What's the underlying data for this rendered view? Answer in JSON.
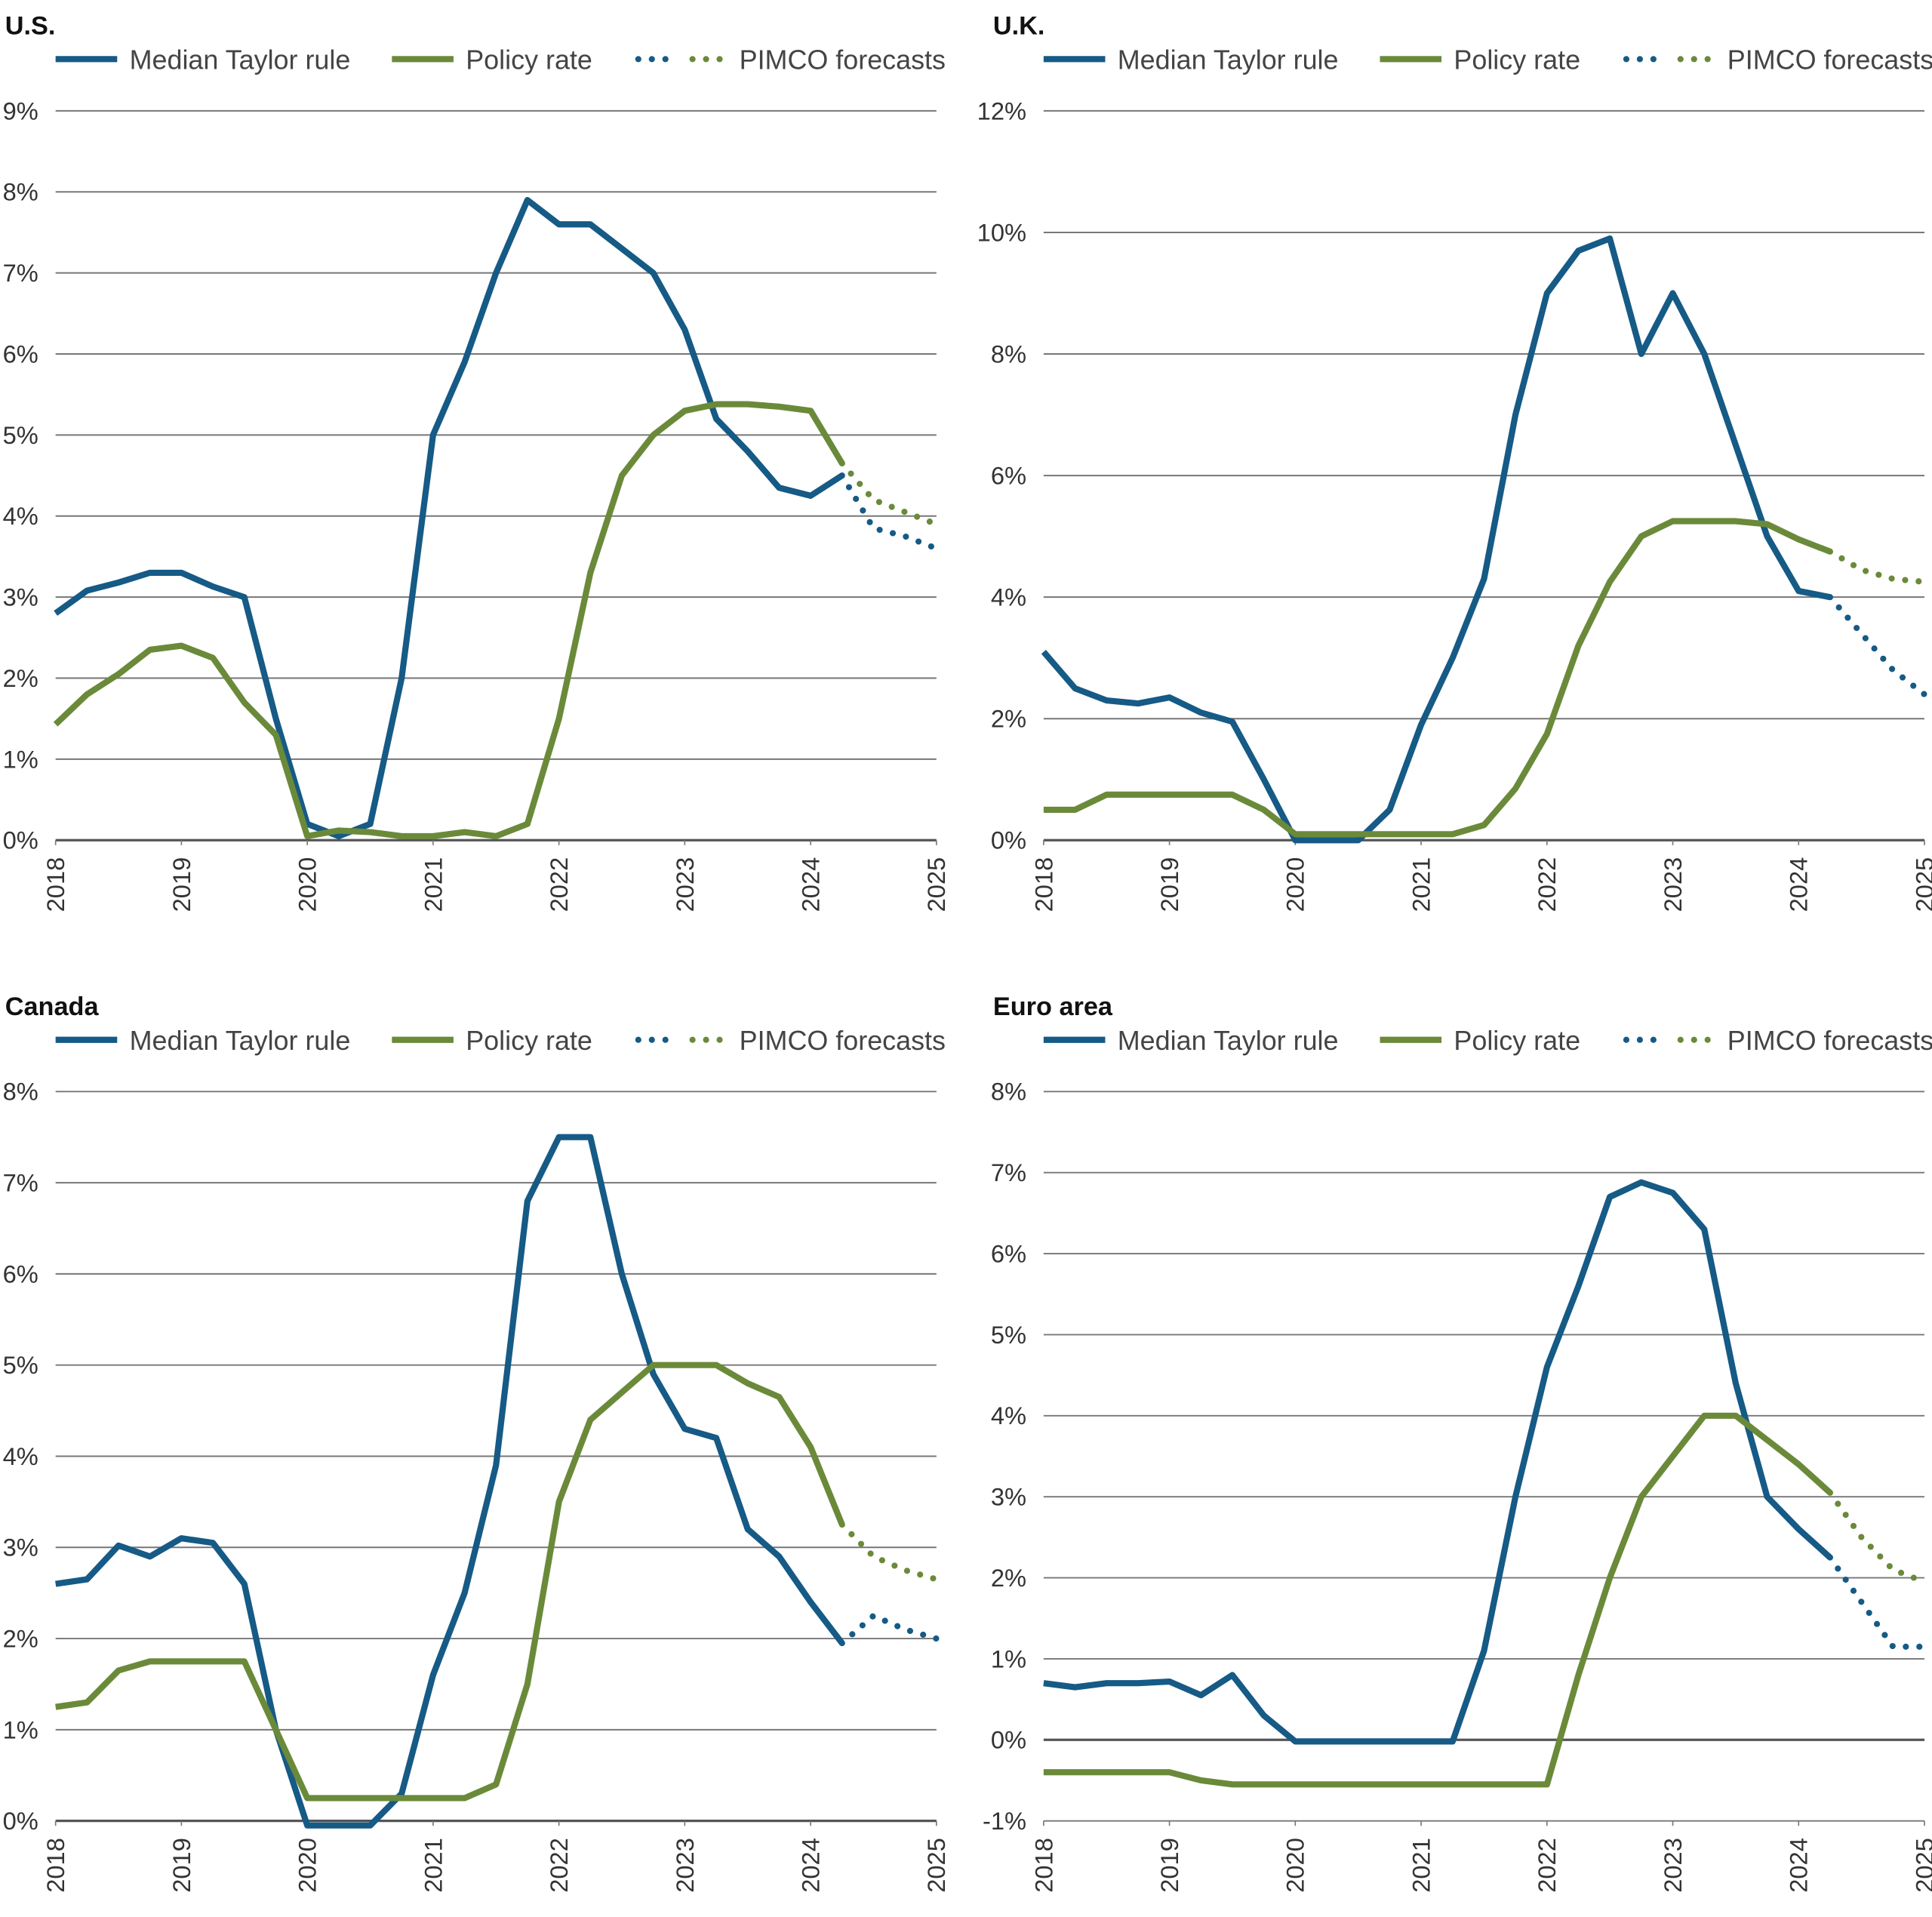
{
  "chart_data": [
    {
      "type": "line",
      "title": "U.S.",
      "x": [
        2018,
        2018.25,
        2018.5,
        2018.75,
        2019,
        2019.25,
        2019.5,
        2019.75,
        2020,
        2020.25,
        2020.5,
        2020.75,
        2021,
        2021.25,
        2021.5,
        2021.75,
        2022,
        2022.25,
        2022.5,
        2022.75,
        2023,
        2023.25,
        2023.5,
        2023.75,
        2024,
        2024.25,
        2024.5,
        2024.75,
        2025
      ],
      "xlim": [
        2018,
        2025
      ],
      "xticks": [
        2018,
        2019,
        2020,
        2021,
        2022,
        2023,
        2024,
        2025
      ],
      "ylim": [
        0,
        9
      ],
      "yticks": [
        {
          "value": 0,
          "label": "0%"
        },
        {
          "value": 1,
          "label": "1%"
        },
        {
          "value": 2,
          "label": "2%"
        },
        {
          "value": 3,
          "label": "3%"
        },
        {
          "value": 4,
          "label": "4%"
        },
        {
          "value": 5,
          "label": "5%"
        },
        {
          "value": 6,
          "label": "6%"
        },
        {
          "value": 7,
          "label": "7%"
        },
        {
          "value": 8,
          "label": "8%"
        },
        {
          "value": 9,
          "label": "9%"
        }
      ],
      "grid": true,
      "series": [
        {
          "name": "Median Taylor rule",
          "color": "#165a86",
          "values": [
            2.8,
            3.08,
            3.18,
            3.3,
            3.3,
            3.13,
            3.0,
            1.5,
            0.2,
            0.05,
            0.2,
            2.0,
            5.0,
            5.9,
            7.0,
            7.9,
            7.6,
            7.6,
            7.3,
            7.0,
            6.3,
            5.2,
            4.8,
            4.35,
            4.25,
            4.5,
            null,
            null,
            null
          ]
        },
        {
          "name": "Policy rate",
          "color": "#6a8a3a",
          "values": [
            1.43,
            1.8,
            2.05,
            2.35,
            2.4,
            2.25,
            1.7,
            1.3,
            0.05,
            0.12,
            0.1,
            0.05,
            0.05,
            0.1,
            0.05,
            0.2,
            1.5,
            3.3,
            4.5,
            5.0,
            5.3,
            5.38,
            5.38,
            5.35,
            5.3,
            4.65,
            null,
            null,
            null
          ]
        }
      ],
      "forecast": {
        "name": "PIMCO forecasts",
        "series": [
          {
            "color": "#165a86",
            "values": [
              null,
              null,
              null,
              null,
              null,
              null,
              null,
              null,
              null,
              null,
              null,
              null,
              null,
              null,
              null,
              null,
              null,
              null,
              null,
              null,
              null,
              null,
              null,
              null,
              null,
              4.5,
              3.85,
              3.75,
              3.6
            ]
          },
          {
            "color": "#6a8a3a",
            "values": [
              null,
              null,
              null,
              null,
              null,
              null,
              null,
              null,
              null,
              null,
              null,
              null,
              null,
              null,
              null,
              null,
              null,
              null,
              null,
              null,
              null,
              null,
              null,
              null,
              null,
              4.65,
              4.2,
              4.05,
              3.9
            ]
          }
        ]
      }
    },
    {
      "type": "line",
      "title": "U.K.",
      "x": [
        2018,
        2018.25,
        2018.5,
        2018.75,
        2019,
        2019.25,
        2019.5,
        2019.75,
        2020,
        2020.25,
        2020.5,
        2020.75,
        2021,
        2021.25,
        2021.5,
        2021.75,
        2022,
        2022.25,
        2022.5,
        2022.75,
        2023,
        2023.25,
        2023.5,
        2023.75,
        2024,
        2024.25,
        2024.5,
        2024.75,
        2025
      ],
      "xlim": [
        2018,
        2025
      ],
      "xticks": [
        2018,
        2019,
        2020,
        2021,
        2022,
        2023,
        2024,
        2025
      ],
      "ylim": [
        0,
        12
      ],
      "yticks": [
        {
          "value": 0,
          "label": "0%"
        },
        {
          "value": 2,
          "label": "2%"
        },
        {
          "value": 4,
          "label": "4%"
        },
        {
          "value": 6,
          "label": "6%"
        },
        {
          "value": 8,
          "label": "8%"
        },
        {
          "value": 10,
          "label": "10%"
        },
        {
          "value": 12,
          "label": "12%"
        }
      ],
      "grid": true,
      "series": [
        {
          "name": "Median Taylor rule",
          "color": "#165a86",
          "values": [
            3.1,
            2.5,
            2.3,
            2.25,
            2.35,
            2.1,
            1.95,
            1.0,
            0,
            0,
            0,
            0.5,
            1.9,
            3.0,
            4.3,
            7.0,
            9.0,
            9.7,
            9.9,
            8.0,
            9.0,
            8.0,
            6.5,
            5.0,
            4.1,
            4.0,
            null,
            null,
            null
          ]
        },
        {
          "name": "Policy rate",
          "color": "#6a8a3a",
          "values": [
            0.5,
            0.5,
            0.75,
            0.75,
            0.75,
            0.75,
            0.75,
            0.5,
            0.1,
            0.1,
            0.1,
            0.1,
            0.1,
            0.1,
            0.25,
            0.85,
            1.75,
            3.2,
            4.25,
            5.0,
            5.25,
            5.25,
            5.25,
            5.2,
            4.95,
            4.75,
            null,
            null,
            null
          ]
        }
      ],
      "forecast": {
        "name": "PIMCO forecasts",
        "series": [
          {
            "color": "#165a86",
            "values": [
              null,
              null,
              null,
              null,
              null,
              null,
              null,
              null,
              null,
              null,
              null,
              null,
              null,
              null,
              null,
              null,
              null,
              null,
              null,
              null,
              null,
              null,
              null,
              null,
              null,
              4.0,
              3.4,
              2.8,
              2.4
            ]
          },
          {
            "color": "#6a8a3a",
            "values": [
              null,
              null,
              null,
              null,
              null,
              null,
              null,
              null,
              null,
              null,
              null,
              null,
              null,
              null,
              null,
              null,
              null,
              null,
              null,
              null,
              null,
              null,
              null,
              null,
              null,
              4.75,
              4.45,
              4.3,
              4.25
            ]
          }
        ]
      }
    },
    {
      "type": "line",
      "title": "Canada",
      "x": [
        2018,
        2018.25,
        2018.5,
        2018.75,
        2019,
        2019.25,
        2019.5,
        2019.75,
        2020,
        2020.25,
        2020.5,
        2020.75,
        2021,
        2021.25,
        2021.5,
        2021.75,
        2022,
        2022.25,
        2022.5,
        2022.75,
        2023,
        2023.25,
        2023.5,
        2023.75,
        2024,
        2024.25,
        2024.5,
        2024.75,
        2025
      ],
      "xlim": [
        2018,
        2025
      ],
      "xticks": [
        2018,
        2019,
        2020,
        2021,
        2022,
        2023,
        2024,
        2025
      ],
      "ylim": [
        0,
        8
      ],
      "yticks": [
        {
          "value": 0,
          "label": "0%"
        },
        {
          "value": 1,
          "label": "1%"
        },
        {
          "value": 2,
          "label": "2%"
        },
        {
          "value": 3,
          "label": "3%"
        },
        {
          "value": 4,
          "label": "4%"
        },
        {
          "value": 5,
          "label": "5%"
        },
        {
          "value": 6,
          "label": "6%"
        },
        {
          "value": 7,
          "label": "7%"
        },
        {
          "value": 8,
          "label": "8%"
        }
      ],
      "grid": true,
      "series": [
        {
          "name": "Median Taylor rule",
          "color": "#165a86",
          "values": [
            2.6,
            2.65,
            3.02,
            2.9,
            3.1,
            3.05,
            2.6,
            1.0,
            -0.05,
            -0.05,
            -0.05,
            0.3,
            1.6,
            2.5,
            3.9,
            6.8,
            7.5,
            7.5,
            6.0,
            4.9,
            4.3,
            4.2,
            3.2,
            2.9,
            2.4,
            1.95,
            null,
            null,
            null
          ]
        },
        {
          "name": "Policy rate",
          "color": "#6a8a3a",
          "values": [
            1.25,
            1.3,
            1.65,
            1.75,
            1.75,
            1.75,
            1.75,
            1.0,
            0.25,
            0.25,
            0.25,
            0.25,
            0.25,
            0.25,
            0.4,
            1.5,
            3.5,
            4.4,
            4.7,
            5.0,
            5.0,
            5.0,
            4.8,
            4.65,
            4.1,
            3.25,
            null,
            null,
            null
          ]
        }
      ],
      "forecast": {
        "name": "PIMCO forecasts",
        "series": [
          {
            "color": "#165a86",
            "values": [
              null,
              null,
              null,
              null,
              null,
              null,
              null,
              null,
              null,
              null,
              null,
              null,
              null,
              null,
              null,
              null,
              null,
              null,
              null,
              null,
              null,
              null,
              null,
              null,
              null,
              1.95,
              2.25,
              2.1,
              2.0
            ]
          },
          {
            "color": "#6a8a3a",
            "values": [
              null,
              null,
              null,
              null,
              null,
              null,
              null,
              null,
              null,
              null,
              null,
              null,
              null,
              null,
              null,
              null,
              null,
              null,
              null,
              null,
              null,
              null,
              null,
              null,
              null,
              3.25,
              2.9,
              2.75,
              2.65
            ]
          }
        ]
      }
    },
    {
      "type": "line",
      "title": "Euro area",
      "x": [
        2018,
        2018.25,
        2018.5,
        2018.75,
        2019,
        2019.25,
        2019.5,
        2019.75,
        2020,
        2020.25,
        2020.5,
        2020.75,
        2021,
        2021.25,
        2021.5,
        2021.75,
        2022,
        2022.25,
        2022.5,
        2022.75,
        2023,
        2023.25,
        2023.5,
        2023.75,
        2024,
        2024.25,
        2024.5,
        2024.75,
        2025
      ],
      "xlim": [
        2018,
        2025
      ],
      "xticks": [
        2018,
        2019,
        2020,
        2021,
        2022,
        2023,
        2024,
        2025
      ],
      "ylim": [
        -1,
        8
      ],
      "yticks": [
        {
          "value": -1,
          "label": "-1%"
        },
        {
          "value": 0,
          "label": "0%"
        },
        {
          "value": 1,
          "label": "1%"
        },
        {
          "value": 2,
          "label": "2%"
        },
        {
          "value": 3,
          "label": "3%"
        },
        {
          "value": 4,
          "label": "4%"
        },
        {
          "value": 5,
          "label": "5%"
        },
        {
          "value": 6,
          "label": "6%"
        },
        {
          "value": 7,
          "label": "7%"
        },
        {
          "value": 8,
          "label": "8%"
        }
      ],
      "grid": true,
      "series": [
        {
          "name": "Median Taylor rule",
          "color": "#165a86",
          "values": [
            0.7,
            0.65,
            0.7,
            0.7,
            0.72,
            0.55,
            0.8,
            0.3,
            -0.02,
            -0.02,
            -0.02,
            -0.02,
            -0.02,
            -0.02,
            1.1,
            3.0,
            4.6,
            5.6,
            6.7,
            6.88,
            6.75,
            6.3,
            4.4,
            3.0,
            2.6,
            2.25,
            null,
            null,
            null
          ]
        },
        {
          "name": "Policy rate",
          "color": "#6a8a3a",
          "values": [
            -0.4,
            -0.4,
            -0.4,
            -0.4,
            -0.4,
            -0.5,
            -0.55,
            -0.55,
            -0.55,
            -0.55,
            -0.55,
            -0.55,
            -0.55,
            -0.55,
            -0.55,
            -0.55,
            -0.55,
            0.8,
            2.0,
            3.0,
            3.5,
            4.0,
            4.0,
            3.7,
            3.4,
            3.05,
            null,
            null,
            null
          ]
        }
      ],
      "forecast": {
        "name": "PIMCO forecasts",
        "series": [
          {
            "color": "#165a86",
            "values": [
              null,
              null,
              null,
              null,
              null,
              null,
              null,
              null,
              null,
              null,
              null,
              null,
              null,
              null,
              null,
              null,
              null,
              null,
              null,
              null,
              null,
              null,
              null,
              null,
              null,
              2.25,
              1.7,
              1.15,
              1.15
            ]
          },
          {
            "color": "#6a8a3a",
            "values": [
              null,
              null,
              null,
              null,
              null,
              null,
              null,
              null,
              null,
              null,
              null,
              null,
              null,
              null,
              null,
              null,
              null,
              null,
              null,
              null,
              null,
              null,
              null,
              null,
              null,
              3.05,
              2.5,
              2.1,
              1.95
            ]
          }
        ]
      }
    }
  ]
}
